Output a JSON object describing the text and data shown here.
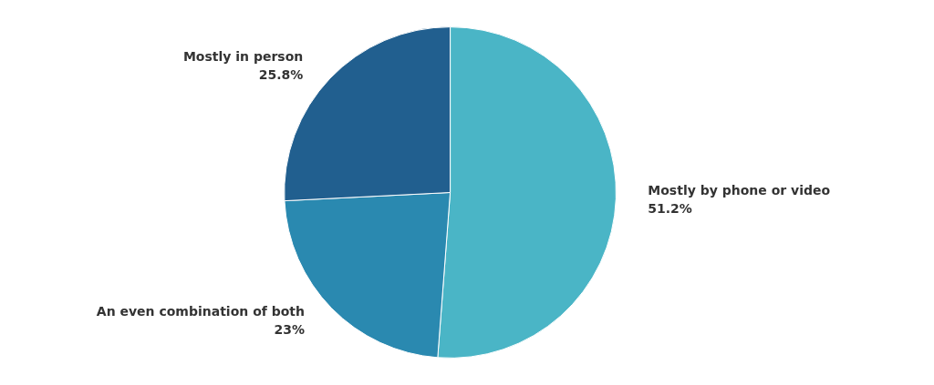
{
  "chart_data": {
    "type": "pie",
    "categories": [
      "Mostly by phone or video",
      "An even combination of both",
      "Mostly in person"
    ],
    "values": [
      51.2,
      23,
      25.8
    ],
    "value_labels": [
      "51.2%",
      "23%",
      "25.8%"
    ],
    "colors": [
      "#4ab5c6",
      "#2a89b0",
      "#215f8f"
    ],
    "legend": false
  }
}
